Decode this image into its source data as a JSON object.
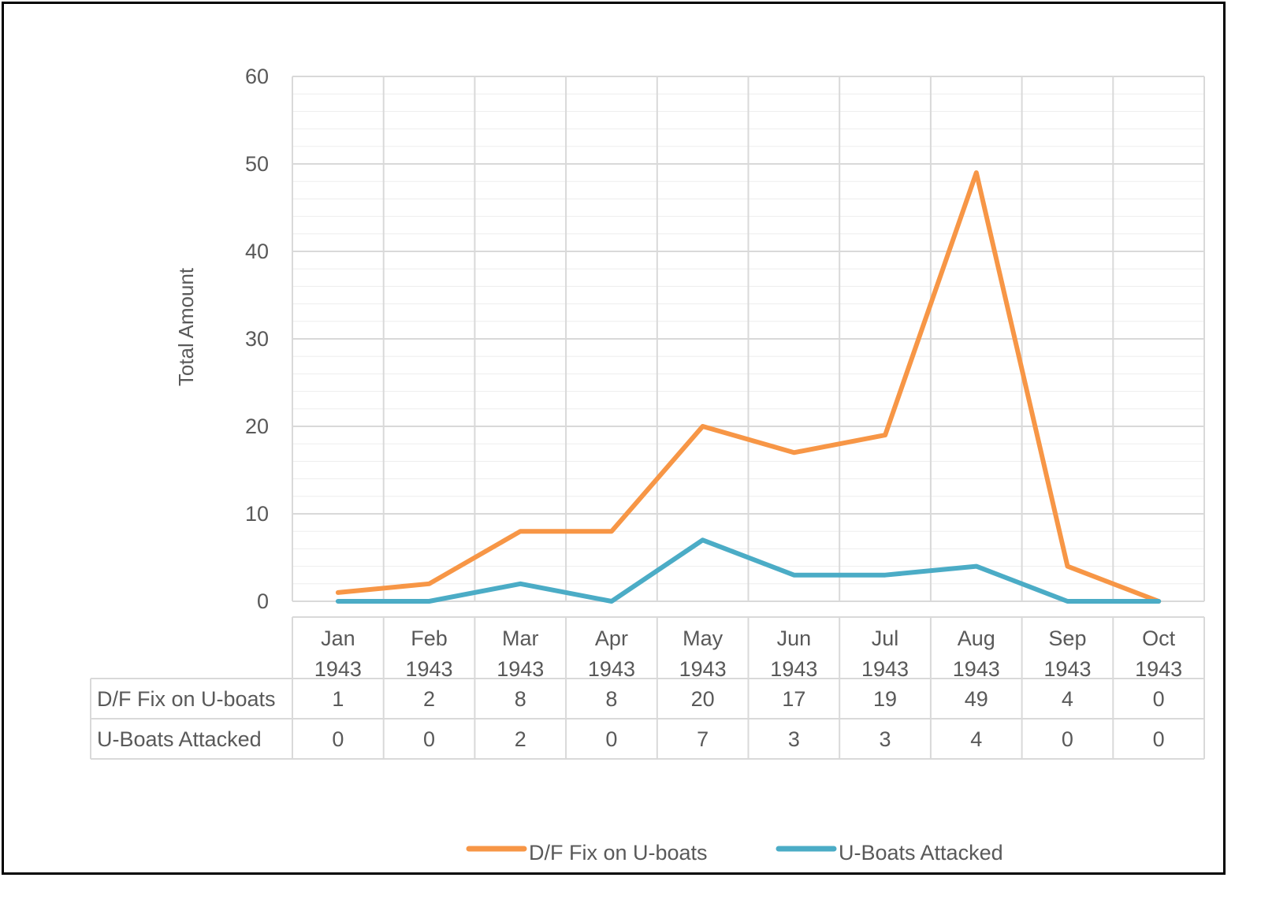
{
  "chart_data": {
    "type": "line",
    "title": "",
    "xlabel": "",
    "ylabel": "Total Amount",
    "ylim": [
      0,
      60
    ],
    "y_major_ticks": [
      0,
      10,
      20,
      30,
      40,
      50,
      60
    ],
    "y_minor_step": 2,
    "grid": true,
    "legend_position": "bottom",
    "data_table": true,
    "categories": [
      [
        "Jan",
        "1943"
      ],
      [
        "Feb",
        "1943"
      ],
      [
        "Mar",
        "1943"
      ],
      [
        "Apr",
        "1943"
      ],
      [
        "May",
        "1943"
      ],
      [
        "Jun",
        "1943"
      ],
      [
        "Jul",
        "1943"
      ],
      [
        "Aug",
        "1943"
      ],
      [
        "Sep",
        "1943"
      ],
      [
        "Oct",
        "1943"
      ]
    ],
    "series": [
      {
        "name": "D/F Fix on U-boats",
        "color": "#f79646",
        "values": [
          1,
          2,
          8,
          8,
          20,
          17,
          19,
          49,
          4,
          0
        ]
      },
      {
        "name": "U-Boats Attacked",
        "color": "#4bacc6",
        "values": [
          0,
          0,
          2,
          0,
          7,
          3,
          3,
          4,
          0,
          0
        ]
      }
    ]
  }
}
